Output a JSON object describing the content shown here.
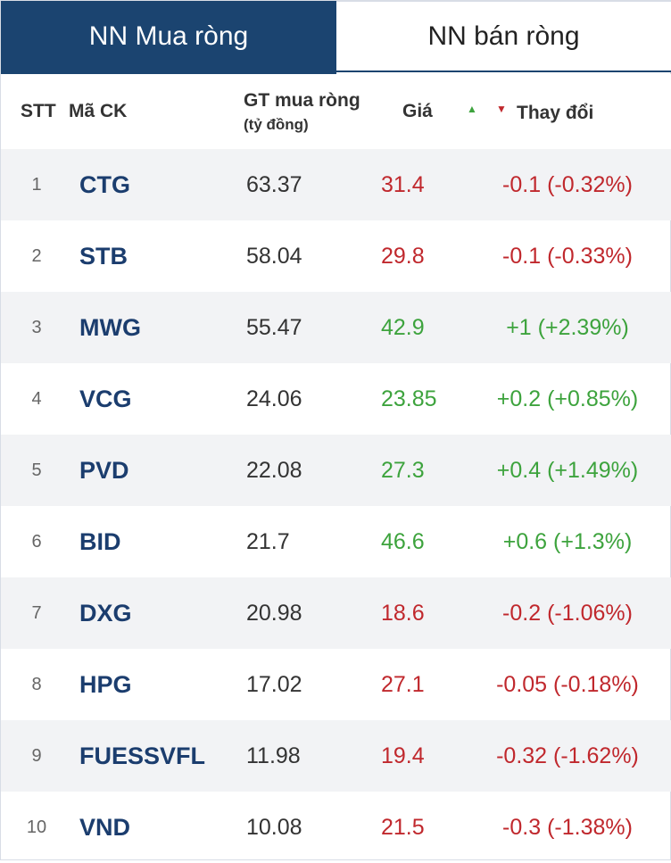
{
  "tabs": [
    {
      "label": "NN Mua ròng",
      "active": true
    },
    {
      "label": "NN bán ròng",
      "active": false
    }
  ],
  "header": {
    "stt": "STT",
    "symbol": "Mã CK",
    "value": "GT mua ròng",
    "value_unit": "(tỷ đồng)",
    "price": "Giá",
    "change": "Thay đổi"
  },
  "colors": {
    "up": "#3da33d",
    "down": "#c0282d",
    "brand": "#1b4470"
  },
  "rows": [
    {
      "stt": "1",
      "symbol": "CTG",
      "value": "63.37",
      "price": "31.4",
      "change": "-0.1 (-0.32%)",
      "dir": "down"
    },
    {
      "stt": "2",
      "symbol": "STB",
      "value": "58.04",
      "price": "29.8",
      "change": "-0.1 (-0.33%)",
      "dir": "down"
    },
    {
      "stt": "3",
      "symbol": "MWG",
      "value": "55.47",
      "price": "42.9",
      "change": "+1 (+2.39%)",
      "dir": "up"
    },
    {
      "stt": "4",
      "symbol": "VCG",
      "value": "24.06",
      "price": "23.85",
      "change": "+0.2 (+0.85%)",
      "dir": "up"
    },
    {
      "stt": "5",
      "symbol": "PVD",
      "value": "22.08",
      "price": "27.3",
      "change": "+0.4 (+1.49%)",
      "dir": "up"
    },
    {
      "stt": "6",
      "symbol": "BID",
      "value": "21.7",
      "price": "46.6",
      "change": "+0.6 (+1.3%)",
      "dir": "up"
    },
    {
      "stt": "7",
      "symbol": "DXG",
      "value": "20.98",
      "price": "18.6",
      "change": "-0.2 (-1.06%)",
      "dir": "down"
    },
    {
      "stt": "8",
      "symbol": "HPG",
      "value": "17.02",
      "price": "27.1",
      "change": "-0.05 (-0.18%)",
      "dir": "down"
    },
    {
      "stt": "9",
      "symbol": "FUESSVFL",
      "value": "11.98",
      "price": "19.4",
      "change": "-0.32 (-1.62%)",
      "dir": "down"
    },
    {
      "stt": "10",
      "symbol": "VND",
      "value": "10.08",
      "price": "21.5",
      "change": "-0.3 (-1.38%)",
      "dir": "down"
    }
  ]
}
